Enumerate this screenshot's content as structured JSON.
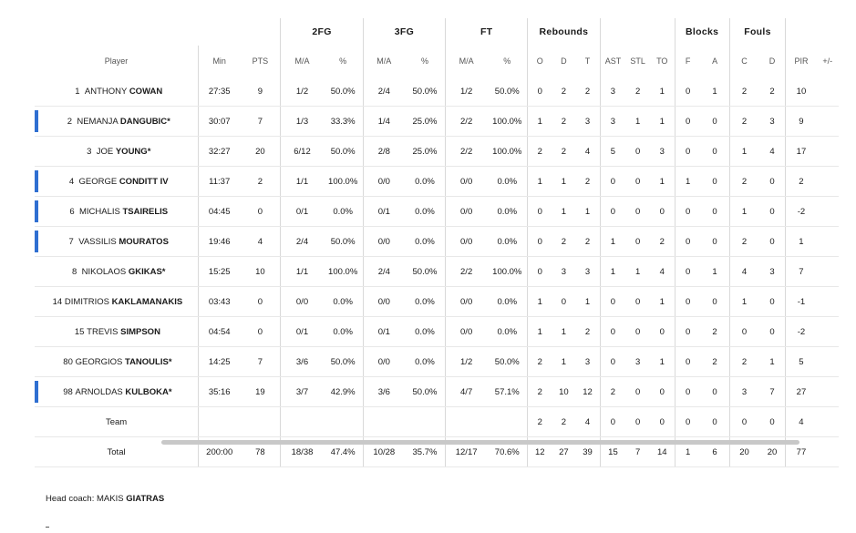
{
  "groups": {
    "fg2": "2FG",
    "fg3": "3FG",
    "ft": "FT",
    "rebounds": "Rebounds",
    "blocks": "Blocks",
    "fouls": "Fouls"
  },
  "columns": {
    "player": "Player",
    "min": "Min",
    "pts": "PTS",
    "fg2_ma": "M/A",
    "fg2_pct": "%",
    "fg3_ma": "M/A",
    "fg3_pct": "%",
    "ft_ma": "M/A",
    "ft_pct": "%",
    "reb_o": "O",
    "reb_d": "D",
    "reb_t": "T",
    "ast": "AST",
    "stl": "STL",
    "to": "TO",
    "blk_f": "F",
    "blk_a": "A",
    "foul_c": "C",
    "foul_d": "D",
    "pir": "PIR",
    "plusminus": "+/-"
  },
  "players": [
    {
      "num": "1",
      "first": "ANTHONY",
      "last": "COWAN",
      "mark": "",
      "starter": false,
      "min": "27:35",
      "pts": "9",
      "fg2_ma": "1/2",
      "fg2_pct": "50.0%",
      "fg3_ma": "2/4",
      "fg3_pct": "50.0%",
      "ft_ma": "1/2",
      "ft_pct": "50.0%",
      "reb_o": "0",
      "reb_d": "2",
      "reb_t": "2",
      "ast": "3",
      "stl": "2",
      "to": "1",
      "blk_f": "0",
      "blk_a": "1",
      "foul_c": "2",
      "foul_d": "2",
      "pir": "10",
      "pm": ""
    },
    {
      "num": "2",
      "first": "NEMANJA",
      "last": "DANGUBIC",
      "mark": "*",
      "starter": true,
      "min": "30:07",
      "pts": "7",
      "fg2_ma": "1/3",
      "fg2_pct": "33.3%",
      "fg3_ma": "1/4",
      "fg3_pct": "25.0%",
      "ft_ma": "2/2",
      "ft_pct": "100.0%",
      "reb_o": "1",
      "reb_d": "2",
      "reb_t": "3",
      "ast": "3",
      "stl": "1",
      "to": "1",
      "blk_f": "0",
      "blk_a": "0",
      "foul_c": "2",
      "foul_d": "3",
      "pir": "9",
      "pm": ""
    },
    {
      "num": "3",
      "first": "JOE",
      "last": "YOUNG",
      "mark": "*",
      "starter": false,
      "min": "32:27",
      "pts": "20",
      "fg2_ma": "6/12",
      "fg2_pct": "50.0%",
      "fg3_ma": "2/8",
      "fg3_pct": "25.0%",
      "ft_ma": "2/2",
      "ft_pct": "100.0%",
      "reb_o": "2",
      "reb_d": "2",
      "reb_t": "4",
      "ast": "5",
      "stl": "0",
      "to": "3",
      "blk_f": "0",
      "blk_a": "0",
      "foul_c": "1",
      "foul_d": "4",
      "pir": "17",
      "pm": ""
    },
    {
      "num": "4",
      "first": "GEORGE",
      "last": "CONDITT IV",
      "mark": "",
      "starter": true,
      "min": "11:37",
      "pts": "2",
      "fg2_ma": "1/1",
      "fg2_pct": "100.0%",
      "fg3_ma": "0/0",
      "fg3_pct": "0.0%",
      "ft_ma": "0/0",
      "ft_pct": "0.0%",
      "reb_o": "1",
      "reb_d": "1",
      "reb_t": "2",
      "ast": "0",
      "stl": "0",
      "to": "1",
      "blk_f": "1",
      "blk_a": "0",
      "foul_c": "2",
      "foul_d": "0",
      "pir": "2",
      "pm": ""
    },
    {
      "num": "6",
      "first": "MICHALIS",
      "last": "TSAIRELIS",
      "mark": "",
      "starter": true,
      "min": "04:45",
      "pts": "0",
      "fg2_ma": "0/1",
      "fg2_pct": "0.0%",
      "fg3_ma": "0/1",
      "fg3_pct": "0.0%",
      "ft_ma": "0/0",
      "ft_pct": "0.0%",
      "reb_o": "0",
      "reb_d": "1",
      "reb_t": "1",
      "ast": "0",
      "stl": "0",
      "to": "0",
      "blk_f": "0",
      "blk_a": "0",
      "foul_c": "1",
      "foul_d": "0",
      "pir": "-2",
      "pm": ""
    },
    {
      "num": "7",
      "first": "VASSILIS",
      "last": "MOURATOS",
      "mark": "",
      "starter": true,
      "min": "19:46",
      "pts": "4",
      "fg2_ma": "2/4",
      "fg2_pct": "50.0%",
      "fg3_ma": "0/0",
      "fg3_pct": "0.0%",
      "ft_ma": "0/0",
      "ft_pct": "0.0%",
      "reb_o": "0",
      "reb_d": "2",
      "reb_t": "2",
      "ast": "1",
      "stl": "0",
      "to": "2",
      "blk_f": "0",
      "blk_a": "0",
      "foul_c": "2",
      "foul_d": "0",
      "pir": "1",
      "pm": ""
    },
    {
      "num": "8",
      "first": "NIKOLAOS",
      "last": "GKIKAS",
      "mark": "*",
      "starter": false,
      "min": "15:25",
      "pts": "10",
      "fg2_ma": "1/1",
      "fg2_pct": "100.0%",
      "fg3_ma": "2/4",
      "fg3_pct": "50.0%",
      "ft_ma": "2/2",
      "ft_pct": "100.0%",
      "reb_o": "0",
      "reb_d": "3",
      "reb_t": "3",
      "ast": "1",
      "stl": "1",
      "to": "4",
      "blk_f": "0",
      "blk_a": "1",
      "foul_c": "4",
      "foul_d": "3",
      "pir": "7",
      "pm": ""
    },
    {
      "num": "14",
      "first": "DIMITRIOS",
      "last": "KAKLAMANAKIS",
      "mark": "",
      "starter": false,
      "min": "03:43",
      "pts": "0",
      "fg2_ma": "0/0",
      "fg2_pct": "0.0%",
      "fg3_ma": "0/0",
      "fg3_pct": "0.0%",
      "ft_ma": "0/0",
      "ft_pct": "0.0%",
      "reb_o": "1",
      "reb_d": "0",
      "reb_t": "1",
      "ast": "0",
      "stl": "0",
      "to": "1",
      "blk_f": "0",
      "blk_a": "0",
      "foul_c": "1",
      "foul_d": "0",
      "pir": "-1",
      "pm": ""
    },
    {
      "num": "15",
      "first": "TREVIS",
      "last": "SIMPSON",
      "mark": "",
      "starter": false,
      "min": "04:54",
      "pts": "0",
      "fg2_ma": "0/1",
      "fg2_pct": "0.0%",
      "fg3_ma": "0/1",
      "fg3_pct": "0.0%",
      "ft_ma": "0/0",
      "ft_pct": "0.0%",
      "reb_o": "1",
      "reb_d": "1",
      "reb_t": "2",
      "ast": "0",
      "stl": "0",
      "to": "0",
      "blk_f": "0",
      "blk_a": "2",
      "foul_c": "0",
      "foul_d": "0",
      "pir": "-2",
      "pm": ""
    },
    {
      "num": "80",
      "first": "GEORGIOS",
      "last": "TANOULIS",
      "mark": "*",
      "starter": false,
      "min": "14:25",
      "pts": "7",
      "fg2_ma": "3/6",
      "fg2_pct": "50.0%",
      "fg3_ma": "0/0",
      "fg3_pct": "0.0%",
      "ft_ma": "1/2",
      "ft_pct": "50.0%",
      "reb_o": "2",
      "reb_d": "1",
      "reb_t": "3",
      "ast": "0",
      "stl": "3",
      "to": "1",
      "blk_f": "0",
      "blk_a": "2",
      "foul_c": "2",
      "foul_d": "1",
      "pir": "5",
      "pm": ""
    },
    {
      "num": "98",
      "first": "ARNOLDAS",
      "last": "KULBOKA",
      "mark": "*",
      "starter": true,
      "min": "35:16",
      "pts": "19",
      "fg2_ma": "3/7",
      "fg2_pct": "42.9%",
      "fg3_ma": "3/6",
      "fg3_pct": "50.0%",
      "ft_ma": "4/7",
      "ft_pct": "57.1%",
      "reb_o": "2",
      "reb_d": "10",
      "reb_t": "12",
      "ast": "2",
      "stl": "0",
      "to": "0",
      "blk_f": "0",
      "blk_a": "0",
      "foul_c": "3",
      "foul_d": "7",
      "pir": "27",
      "pm": ""
    }
  ],
  "team": {
    "label": "Team",
    "min": "",
    "pts": "",
    "fg2_ma": "",
    "fg2_pct": "",
    "fg3_ma": "",
    "fg3_pct": "",
    "ft_ma": "",
    "ft_pct": "",
    "reb_o": "2",
    "reb_d": "2",
    "reb_t": "4",
    "ast": "0",
    "stl": "0",
    "to": "0",
    "blk_f": "0",
    "blk_a": "0",
    "foul_c": "0",
    "foul_d": "0",
    "pir": "4",
    "pm": ""
  },
  "total": {
    "label": "Total",
    "min": "200:00",
    "pts": "78",
    "fg2_ma": "18/38",
    "fg2_pct": "47.4%",
    "fg3_ma": "10/28",
    "fg3_pct": "35.7%",
    "ft_ma": "12/17",
    "ft_pct": "70.6%",
    "reb_o": "12",
    "reb_d": "27",
    "reb_t": "39",
    "ast": "15",
    "stl": "7",
    "to": "14",
    "blk_f": "1",
    "blk_a": "6",
    "foul_c": "20",
    "foul_d": "20",
    "pir": "77",
    "pm": ""
  },
  "coach": {
    "label": "Head coach:",
    "first": "MAKIS",
    "last": "GIATRAS"
  },
  "colors": {
    "starter_bar": "#2f6fd1"
  }
}
